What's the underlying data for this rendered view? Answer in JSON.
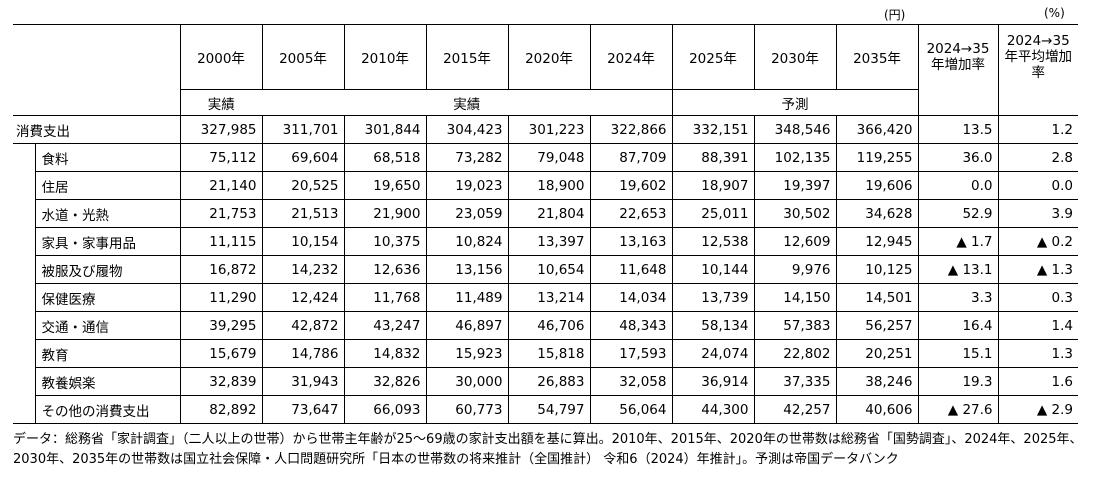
{
  "units": {
    "yen": "(円)",
    "percent": "(%)"
  },
  "columns": [
    "2000年",
    "2005年",
    "2010年",
    "2015年",
    "2020年",
    "2024年",
    "2025年",
    "2030年",
    "2035年",
    "2024→35年増加率",
    "2024→35年平均増加率"
  ],
  "groups": {
    "actual_left": "実績",
    "actual_right": "実績",
    "forecast": "予測"
  },
  "rows": [
    {
      "name": "消費支出",
      "values": [
        "327,985",
        "311,701",
        "301,844",
        "304,423",
        "301,223",
        "322,866",
        "332,151",
        "348,546",
        "366,420",
        "13.5",
        "1.2"
      ]
    },
    {
      "name": "食料",
      "values": [
        "75,112",
        "69,604",
        "68,518",
        "73,282",
        "79,048",
        "87,709",
        "88,391",
        "102,135",
        "119,255",
        "36.0",
        "2.8"
      ]
    },
    {
      "name": "住居",
      "values": [
        "21,140",
        "20,525",
        "19,650",
        "19,023",
        "18,900",
        "19,602",
        "18,907",
        "19,397",
        "19,606",
        "0.0",
        "0.0"
      ]
    },
    {
      "name": "水道・光熱",
      "values": [
        "21,753",
        "21,513",
        "21,900",
        "23,059",
        "21,804",
        "22,653",
        "25,011",
        "30,502",
        "34,628",
        "52.9",
        "3.9"
      ]
    },
    {
      "name": "家具・家事用品",
      "values": [
        "11,115",
        "10,154",
        "10,375",
        "10,824",
        "13,397",
        "13,163",
        "12,538",
        "12,609",
        "12,945",
        "▲ 1.7",
        "▲ 0.2"
      ]
    },
    {
      "name": "被服及び履物",
      "values": [
        "16,872",
        "14,232",
        "12,636",
        "13,156",
        "10,654",
        "11,648",
        "10,144",
        "9,976",
        "10,125",
        "▲ 13.1",
        "▲ 1.3"
      ]
    },
    {
      "name": "保健医療",
      "values": [
        "11,290",
        "12,424",
        "11,768",
        "11,489",
        "13,214",
        "14,034",
        "13,739",
        "14,150",
        "14,501",
        "3.3",
        "0.3"
      ]
    },
    {
      "name": "交通・通信",
      "values": [
        "39,295",
        "42,872",
        "43,247",
        "46,897",
        "46,706",
        "48,343",
        "58,134",
        "57,383",
        "56,257",
        "16.4",
        "1.4"
      ]
    },
    {
      "name": "教育",
      "values": [
        "15,679",
        "14,786",
        "14,832",
        "15,923",
        "15,818",
        "17,593",
        "24,074",
        "22,802",
        "20,251",
        "15.1",
        "1.3"
      ]
    },
    {
      "name": "教養娯楽",
      "values": [
        "32,839",
        "31,943",
        "32,826",
        "30,000",
        "26,883",
        "32,058",
        "36,914",
        "37,335",
        "38,246",
        "19.3",
        "1.6"
      ]
    },
    {
      "name": "その他の消費支出",
      "values": [
        "82,892",
        "73,647",
        "66,093",
        "60,773",
        "54,797",
        "56,064",
        "44,300",
        "42,257",
        "40,606",
        "▲ 27.6",
        "▲ 2.9"
      ]
    }
  ],
  "note": "データ：総務省「家計調査」（二人以上の世帯）から世帯主年齢が25～69歳の家計支出額を基に算出。2010年、2015年、2020年の世帯数は総務省「国勢調査」、2024年、2025年、2030年、2035年の世帯数は国立社会保障・人口問題研究所「日本の世帯数の将来推計（全国推計） 令和6（2024）年推計」。予測は帝国データバンク"
}
